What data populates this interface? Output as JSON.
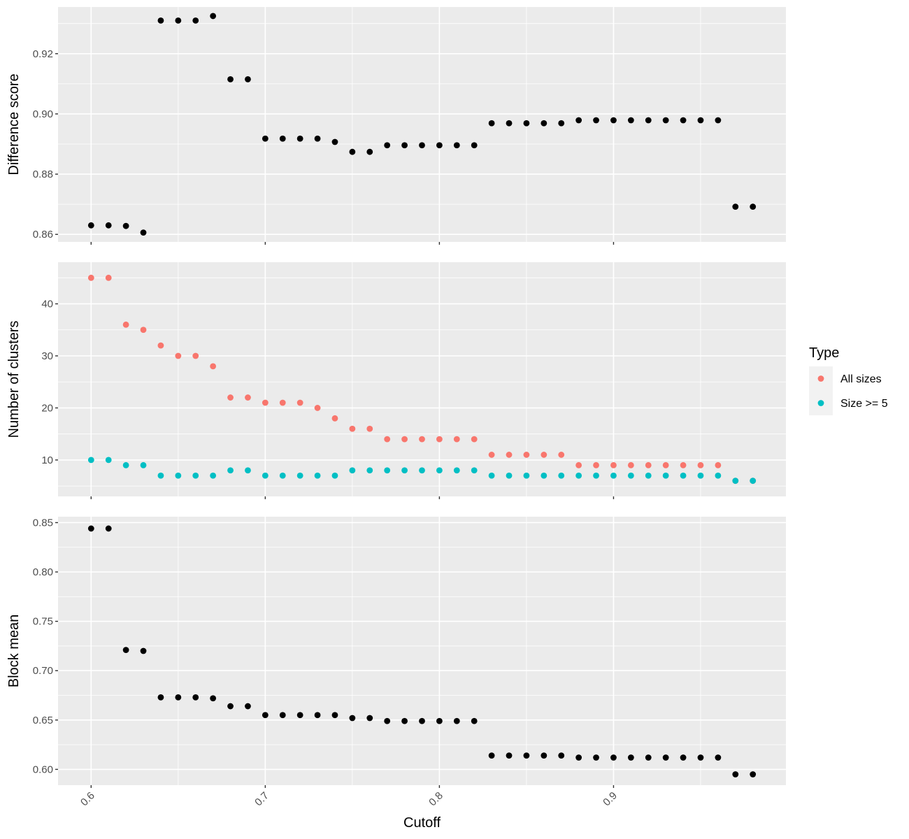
{
  "chart_data": [
    {
      "type": "scatter",
      "title": "",
      "xlabel": "",
      "ylabel": "Difference score",
      "xlim": [
        0.581,
        0.999
      ],
      "ylim": [
        0.8575,
        0.9355
      ],
      "yticks": [
        0.86,
        0.88,
        0.9,
        0.92
      ],
      "ytick_labels": [
        "0.86",
        "0.88",
        "0.90",
        "0.92"
      ],
      "grid": true,
      "series": [
        {
          "color": "#000000",
          "x": [
            0.6,
            0.61,
            0.62,
            0.63,
            0.64,
            0.65,
            0.66,
            0.67,
            0.68,
            0.69,
            0.7,
            0.71,
            0.72,
            0.73,
            0.74,
            0.75,
            0.76,
            0.77,
            0.78,
            0.79,
            0.8,
            0.81,
            0.82,
            0.83,
            0.84,
            0.85,
            0.86,
            0.87,
            0.88,
            0.89,
            0.9,
            0.91,
            0.92,
            0.93,
            0.94,
            0.95,
            0.96,
            0.97,
            0.98
          ],
          "y": [
            0.863,
            0.863,
            0.8628,
            0.8606,
            0.931,
            0.931,
            0.931,
            0.9325,
            0.9115,
            0.9115,
            0.8918,
            0.8918,
            0.8918,
            0.8918,
            0.8907,
            0.8874,
            0.8874,
            0.8896,
            0.8896,
            0.8896,
            0.8896,
            0.8896,
            0.8896,
            0.8969,
            0.8969,
            0.8969,
            0.8969,
            0.8969,
            0.8979,
            0.8979,
            0.8979,
            0.8979,
            0.8979,
            0.8979,
            0.8979,
            0.8979,
            0.8979,
            0.8692,
            0.8692
          ]
        }
      ]
    },
    {
      "type": "scatter",
      "title": "",
      "xlabel": "",
      "ylabel": "Number of clusters",
      "xlim": [
        0.581,
        0.999
      ],
      "ylim": [
        3.0,
        48.0
      ],
      "yticks": [
        10,
        20,
        30,
        40
      ],
      "ytick_labels": [
        "10",
        "20",
        "30",
        "40"
      ],
      "grid": true,
      "legend": {
        "title": "Type",
        "position": "right",
        "entries": [
          {
            "label": "All sizes",
            "color": "#F8766D"
          },
          {
            "label": "Size >= 5",
            "color": "#00BFC4"
          }
        ]
      },
      "series": [
        {
          "name": "All sizes",
          "color": "#F8766D",
          "x": [
            0.6,
            0.61,
            0.62,
            0.63,
            0.64,
            0.65,
            0.66,
            0.67,
            0.68,
            0.69,
            0.7,
            0.71,
            0.72,
            0.73,
            0.74,
            0.75,
            0.76,
            0.77,
            0.78,
            0.79,
            0.8,
            0.81,
            0.82,
            0.83,
            0.84,
            0.85,
            0.86,
            0.87,
            0.88,
            0.89,
            0.9,
            0.91,
            0.92,
            0.93,
            0.94,
            0.95,
            0.96,
            0.97,
            0.98
          ],
          "y": [
            45,
            45,
            36,
            35,
            32,
            30,
            30,
            28,
            22,
            22,
            21,
            21,
            21,
            20,
            18,
            16,
            16,
            14,
            14,
            14,
            14,
            14,
            14,
            11,
            11,
            11,
            11,
            11,
            9,
            9,
            9,
            9,
            9,
            9,
            9,
            9,
            9,
            6,
            6
          ]
        },
        {
          "name": "Size >= 5",
          "color": "#00BFC4",
          "x": [
            0.6,
            0.61,
            0.62,
            0.63,
            0.64,
            0.65,
            0.66,
            0.67,
            0.68,
            0.69,
            0.7,
            0.71,
            0.72,
            0.73,
            0.74,
            0.75,
            0.76,
            0.77,
            0.78,
            0.79,
            0.8,
            0.81,
            0.82,
            0.83,
            0.84,
            0.85,
            0.86,
            0.87,
            0.88,
            0.89,
            0.9,
            0.91,
            0.92,
            0.93,
            0.94,
            0.95,
            0.96,
            0.97,
            0.98
          ],
          "y": [
            10,
            10,
            9,
            9,
            7,
            7,
            7,
            7,
            8,
            8,
            7,
            7,
            7,
            7,
            7,
            8,
            8,
            8,
            8,
            8,
            8,
            8,
            8,
            7,
            7,
            7,
            7,
            7,
            7,
            7,
            7,
            7,
            7,
            7,
            7,
            7,
            7,
            6,
            6
          ]
        }
      ]
    },
    {
      "type": "scatter",
      "title": "",
      "xlabel": "Cutoff",
      "ylabel": "Block mean",
      "xlim": [
        0.581,
        0.999
      ],
      "ylim": [
        0.584,
        0.856
      ],
      "yticks": [
        0.6,
        0.65,
        0.7,
        0.75,
        0.8,
        0.85
      ],
      "ytick_labels": [
        "0.60",
        "0.65",
        "0.70",
        "0.75",
        "0.80",
        "0.85"
      ],
      "xticks": [
        0.6,
        0.7,
        0.8,
        0.9
      ],
      "xtick_labels": [
        "0.6",
        "0.7",
        "0.8",
        "0.9"
      ],
      "grid": true,
      "series": [
        {
          "color": "#000000",
          "x": [
            0.6,
            0.61,
            0.62,
            0.63,
            0.64,
            0.65,
            0.66,
            0.67,
            0.68,
            0.69,
            0.7,
            0.71,
            0.72,
            0.73,
            0.74,
            0.75,
            0.76,
            0.77,
            0.78,
            0.79,
            0.8,
            0.81,
            0.82,
            0.83,
            0.84,
            0.85,
            0.86,
            0.87,
            0.88,
            0.89,
            0.9,
            0.91,
            0.92,
            0.93,
            0.94,
            0.95,
            0.96,
            0.97,
            0.98
          ],
          "y": [
            0.844,
            0.844,
            0.721,
            0.72,
            0.673,
            0.673,
            0.673,
            0.672,
            0.664,
            0.664,
            0.655,
            0.655,
            0.655,
            0.655,
            0.655,
            0.652,
            0.652,
            0.649,
            0.649,
            0.649,
            0.649,
            0.649,
            0.649,
            0.614,
            0.614,
            0.614,
            0.614,
            0.614,
            0.612,
            0.612,
            0.612,
            0.612,
            0.612,
            0.612,
            0.612,
            0.612,
            0.612,
            0.595,
            0.595
          ]
        }
      ]
    }
  ]
}
